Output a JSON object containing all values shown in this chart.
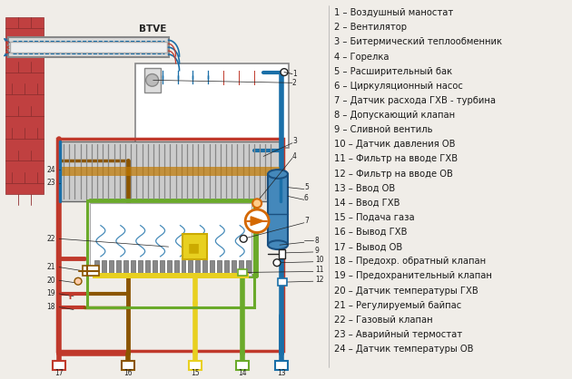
{
  "background_color": "#f0ede8",
  "legend_items": [
    "1 – Воздушный маностат",
    "2 – Вентилятор",
    "3 – Битермический теплообменник",
    "4 – Горелка",
    "5 – Расширительный бак",
    "6 – Циркуляционный насос",
    "7 – Датчик расхода ГХВ - турбина",
    "8 – Допускающий клапан",
    "9 – Сливной вентиль",
    "10 – Датчик давления ОВ",
    "11 – Фильтр на вводе ГХВ",
    "12 – Фильтр на вводе ОВ",
    "13 – Ввод ОВ",
    "14 – Ввод ГХВ",
    "15 – Подача газа",
    "16 – Вывод ГХВ",
    "17 – Вывод ОВ",
    "18 – Предохр. обратный клапан",
    "19 – Предохранительный клапан",
    "20 – Датчик температуры ГХВ",
    "21 – Регулируемый байпас",
    "22 – Газовый клапан",
    "23 – Аварийный термостат",
    "24 – Датчик температуры ОВ"
  ],
  "btve_label": "BTVE",
  "font_size_legend": 7.2,
  "text_color": "#1a1a1a",
  "colors": {
    "red": "#c0392b",
    "blue": "#1a6fa8",
    "green": "#6aaa2a",
    "yellow": "#e8d020",
    "gray": "#888888",
    "dark": "#222222",
    "orange": "#d46800",
    "light_blue": "#5599cc",
    "brown": "#8B5500",
    "wall_red": "#c04040"
  }
}
